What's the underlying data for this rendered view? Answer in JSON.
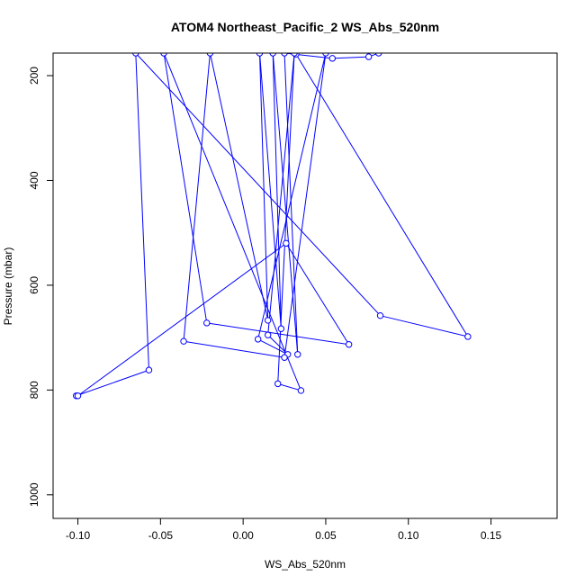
{
  "chart_data": {
    "type": "line",
    "title": "ATOM4 Northeast_Pacific_2 WS_Abs_520nm",
    "xlabel": "WS_Abs_520nm",
    "ylabel": "Pressure (mbar)",
    "xlim": [
      -0.115,
      0.19
    ],
    "ylim": [
      1045,
      157
    ],
    "y_inverted": true,
    "grid": false,
    "legend": "none",
    "xticks": [
      -0.1,
      -0.05,
      0.0,
      0.05,
      0.1,
      0.15
    ],
    "xtick_labels": [
      "-0.10",
      "-0.05",
      "0.00",
      "0.05",
      "0.10",
      "0.15"
    ],
    "yticks": [
      200,
      400,
      600,
      800,
      1000
    ],
    "ytick_labels": [
      "200",
      "400",
      "600",
      "800",
      "1000"
    ],
    "series": [
      {
        "color": "#0000ff",
        "marker": "open-circle",
        "points": [
          {
            "x": 0.032,
            "y": 159
          },
          {
            "x": 0.136,
            "y": 698
          },
          {
            "x": 0.083,
            "y": 658
          },
          {
            "x": -0.065,
            "y": 157
          },
          {
            "x": -0.057,
            "y": 762
          },
          {
            "x": -0.101,
            "y": 811
          },
          {
            "x": -0.1,
            "y": 811
          },
          {
            "x": 0.026,
            "y": 520
          },
          {
            "x": 0.064,
            "y": 713
          },
          {
            "x": -0.022,
            "y": 672
          },
          {
            "x": -0.048,
            "y": 157
          },
          {
            "x": 0.035,
            "y": 801
          },
          {
            "x": 0.021,
            "y": 788
          },
          {
            "x": 0.031,
            "y": 157
          },
          {
            "x": 0.015,
            "y": 695
          },
          {
            "x": 0.027,
            "y": 732
          },
          {
            "x": 0.009,
            "y": 703
          },
          {
            "x": 0.05,
            "y": 157
          },
          {
            "x": 0.025,
            "y": 738
          },
          {
            "x": -0.036,
            "y": 707
          },
          {
            "x": -0.02,
            "y": 157
          },
          {
            "x": 0.015,
            "y": 667
          },
          {
            "x": 0.01,
            "y": 157
          },
          {
            "x": 0.023,
            "y": 683
          },
          {
            "x": 0.018,
            "y": 157
          },
          {
            "x": 0.033,
            "y": 732
          },
          {
            "x": 0.025,
            "y": 157
          },
          {
            "x": 0.054,
            "y": 167
          },
          {
            "x": 0.076,
            "y": 164
          },
          {
            "x": 0.082,
            "y": 157
          }
        ]
      }
    ]
  }
}
